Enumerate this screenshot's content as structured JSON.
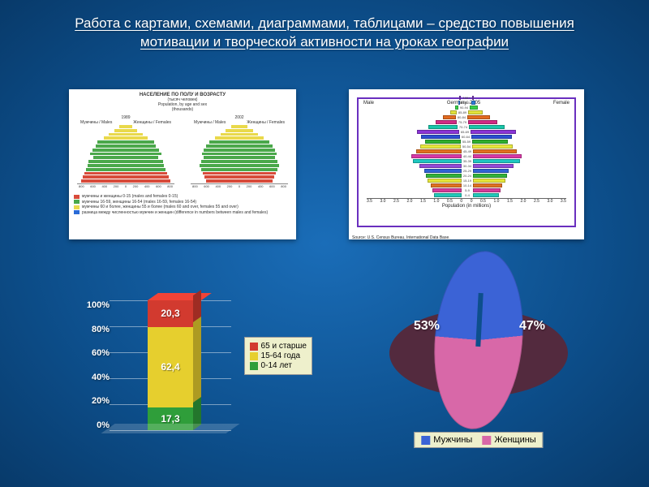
{
  "title": "Работа с картами, схемами, диаграммами, таблицами – средство повышения мотивации и творческой активности на уроках географии",
  "pyramid_small": {
    "type": "population-pyramid",
    "heading": "НАСЕЛЕНИЕ ПО ПОЛУ И ВОЗРАСТУ",
    "heading_sub1": "(тысяч человек)",
    "heading_sub2": "Population, by age and sex",
    "heading_sub3": "(thousands)",
    "years": [
      "1989",
      "2002"
    ],
    "side_labels": {
      "left": "Мужчины / Males",
      "right": "Женщины / Females"
    },
    "x_ticks": [
      "800",
      "600",
      "400",
      "200",
      "0",
      "200",
      "400",
      "600",
      "800"
    ],
    "band_colors": [
      "#e9d94b",
      "#e9d94b",
      "#e9d94b",
      "#e9d94b",
      "#4aa84a",
      "#4aa84a",
      "#4aa84a",
      "#4aa84a",
      "#4aa84a",
      "#4aa84a",
      "#4aa84a",
      "#4aa84a",
      "#d84b3a",
      "#d84b3a",
      "#d84b3a"
    ],
    "rows_1989": [
      {
        "m": 4,
        "f": 12
      },
      {
        "m": 8,
        "f": 20
      },
      {
        "m": 14,
        "f": 28
      },
      {
        "m": 20,
        "f": 34
      },
      {
        "m": 30,
        "f": 40
      },
      {
        "m": 36,
        "f": 38
      },
      {
        "m": 40,
        "f": 42
      },
      {
        "m": 44,
        "f": 44
      },
      {
        "m": 40,
        "f": 40
      },
      {
        "m": 46,
        "f": 46
      },
      {
        "m": 48,
        "f": 46
      },
      {
        "m": 50,
        "f": 48
      },
      {
        "m": 52,
        "f": 50
      },
      {
        "m": 54,
        "f": 52
      },
      {
        "m": 56,
        "f": 54
      }
    ],
    "rows_2002": [
      {
        "m": 6,
        "f": 14
      },
      {
        "m": 10,
        "f": 24
      },
      {
        "m": 16,
        "f": 30
      },
      {
        "m": 24,
        "f": 36
      },
      {
        "m": 34,
        "f": 40
      },
      {
        "m": 40,
        "f": 42
      },
      {
        "m": 44,
        "f": 44
      },
      {
        "m": 46,
        "f": 46
      },
      {
        "m": 44,
        "f": 44
      },
      {
        "m": 48,
        "f": 46
      },
      {
        "m": 50,
        "f": 48
      },
      {
        "m": 48,
        "f": 46
      },
      {
        "m": 46,
        "f": 44
      },
      {
        "m": 44,
        "f": 42
      },
      {
        "m": 42,
        "f": 40
      }
    ],
    "legend": [
      {
        "color": "#d84b3a",
        "text": "мужчины и женщины 0-15 (males and females 0-15)"
      },
      {
        "color": "#4aa84a",
        "text": "мужчины 16-59, женщины 16-54 (males 16-59, females 16-54)"
      },
      {
        "color": "#e9d94b",
        "text": "мужчины 60 и более, женщины 55 и более (males 60 and over, females 55 and over)"
      },
      {
        "color": "#2b6bd6",
        "text": "разница между численностью мужчин и женщин (difference in numbers between males and females)"
      }
    ]
  },
  "pyramid_large": {
    "type": "population-pyramid",
    "frame_color": "#6a2fbf",
    "top_left": "Male",
    "top_center_line1": "Germany: 2005",
    "top_right": "Female",
    "x_label": "Population (in millions)",
    "source": "Source: U.S. Census Bureau, International Data Base.",
    "x_ticks": [
      "3.5",
      "3.0",
      "2.5",
      "2.0",
      "1.5",
      "1.0",
      "0.5",
      "0",
      "0",
      "0.5",
      "1.0",
      "1.5",
      "2.0",
      "2.5",
      "3.0",
      "3.5"
    ],
    "rows": [
      {
        "age": "100+",
        "m": 1,
        "f": 2,
        "c": "#7a3bb8"
      },
      {
        "age": "95-99",
        "m": 2,
        "f": 5,
        "c": "#2e7bd6"
      },
      {
        "age": "90-94",
        "m": 4,
        "f": 10,
        "c": "#39d048"
      },
      {
        "age": "85-89",
        "m": 8,
        "f": 18,
        "c": "#e2e23c"
      },
      {
        "age": "80-84",
        "m": 16,
        "f": 28,
        "c": "#e26a1f"
      },
      {
        "age": "75-79",
        "m": 26,
        "f": 36,
        "c": "#d22a84"
      },
      {
        "age": "70-74",
        "m": 36,
        "f": 44,
        "c": "#19c6a9"
      },
      {
        "age": "65-69",
        "m": 52,
        "f": 56,
        "c": "#8a34d6"
      },
      {
        "age": "60-64",
        "m": 48,
        "f": 50,
        "c": "#2a4fd0"
      },
      {
        "age": "55-59",
        "m": 44,
        "f": 44,
        "c": "#2fae2f"
      },
      {
        "age": "50-54",
        "m": 50,
        "f": 50,
        "c": "#e8e83e"
      },
      {
        "age": "45-49",
        "m": 56,
        "f": 54,
        "c": "#e07020"
      },
      {
        "age": "40-44",
        "m": 62,
        "f": 60,
        "c": "#d838a6"
      },
      {
        "age": "35-39",
        "m": 60,
        "f": 58,
        "c": "#1ec7c0"
      },
      {
        "age": "30-34",
        "m": 52,
        "f": 50,
        "c": "#924ad8"
      },
      {
        "age": "25-29",
        "m": 46,
        "f": 44,
        "c": "#2f62d4"
      },
      {
        "age": "20-24",
        "m": 44,
        "f": 42,
        "c": "#33b23a"
      },
      {
        "age": "15-19",
        "m": 42,
        "f": 40,
        "c": "#e6e63a"
      },
      {
        "age": "10-14",
        "m": 38,
        "f": 36,
        "c": "#df7222"
      },
      {
        "age": "5-9",
        "m": 36,
        "f": 34,
        "c": "#d63a9a"
      },
      {
        "age": "0-4",
        "m": 34,
        "f": 32,
        "c": "#22c7b8"
      }
    ]
  },
  "stacked_bar": {
    "type": "stacked-bar-3d",
    "y_ticks": [
      "100%",
      "80%",
      "60%",
      "40%",
      "20%",
      "0%"
    ],
    "grid_color": "rgba(255,255,255,.45)",
    "segments": [
      {
        "label": "20,3",
        "value": 20.3,
        "color": "#d23a2f",
        "legend": "65 и старше"
      },
      {
        "label": "62,4",
        "value": 62.4,
        "color": "#e6cf2e",
        "legend": "15-64 года"
      },
      {
        "label": "17,3",
        "value": 17.3,
        "color": "#2f9e3a",
        "legend": "0-14 лет"
      }
    ],
    "legend_box_bg": "#eef0cc"
  },
  "pie": {
    "type": "pie-3d",
    "slices": [
      {
        "label": "Мужчины",
        "value": 47,
        "display": "47%",
        "color": "#3b63d6"
      },
      {
        "label": "Женщины",
        "value": 53,
        "display": "53%",
        "color": "#d868a8"
      }
    ],
    "legend_box_bg": "#eef0cc"
  }
}
